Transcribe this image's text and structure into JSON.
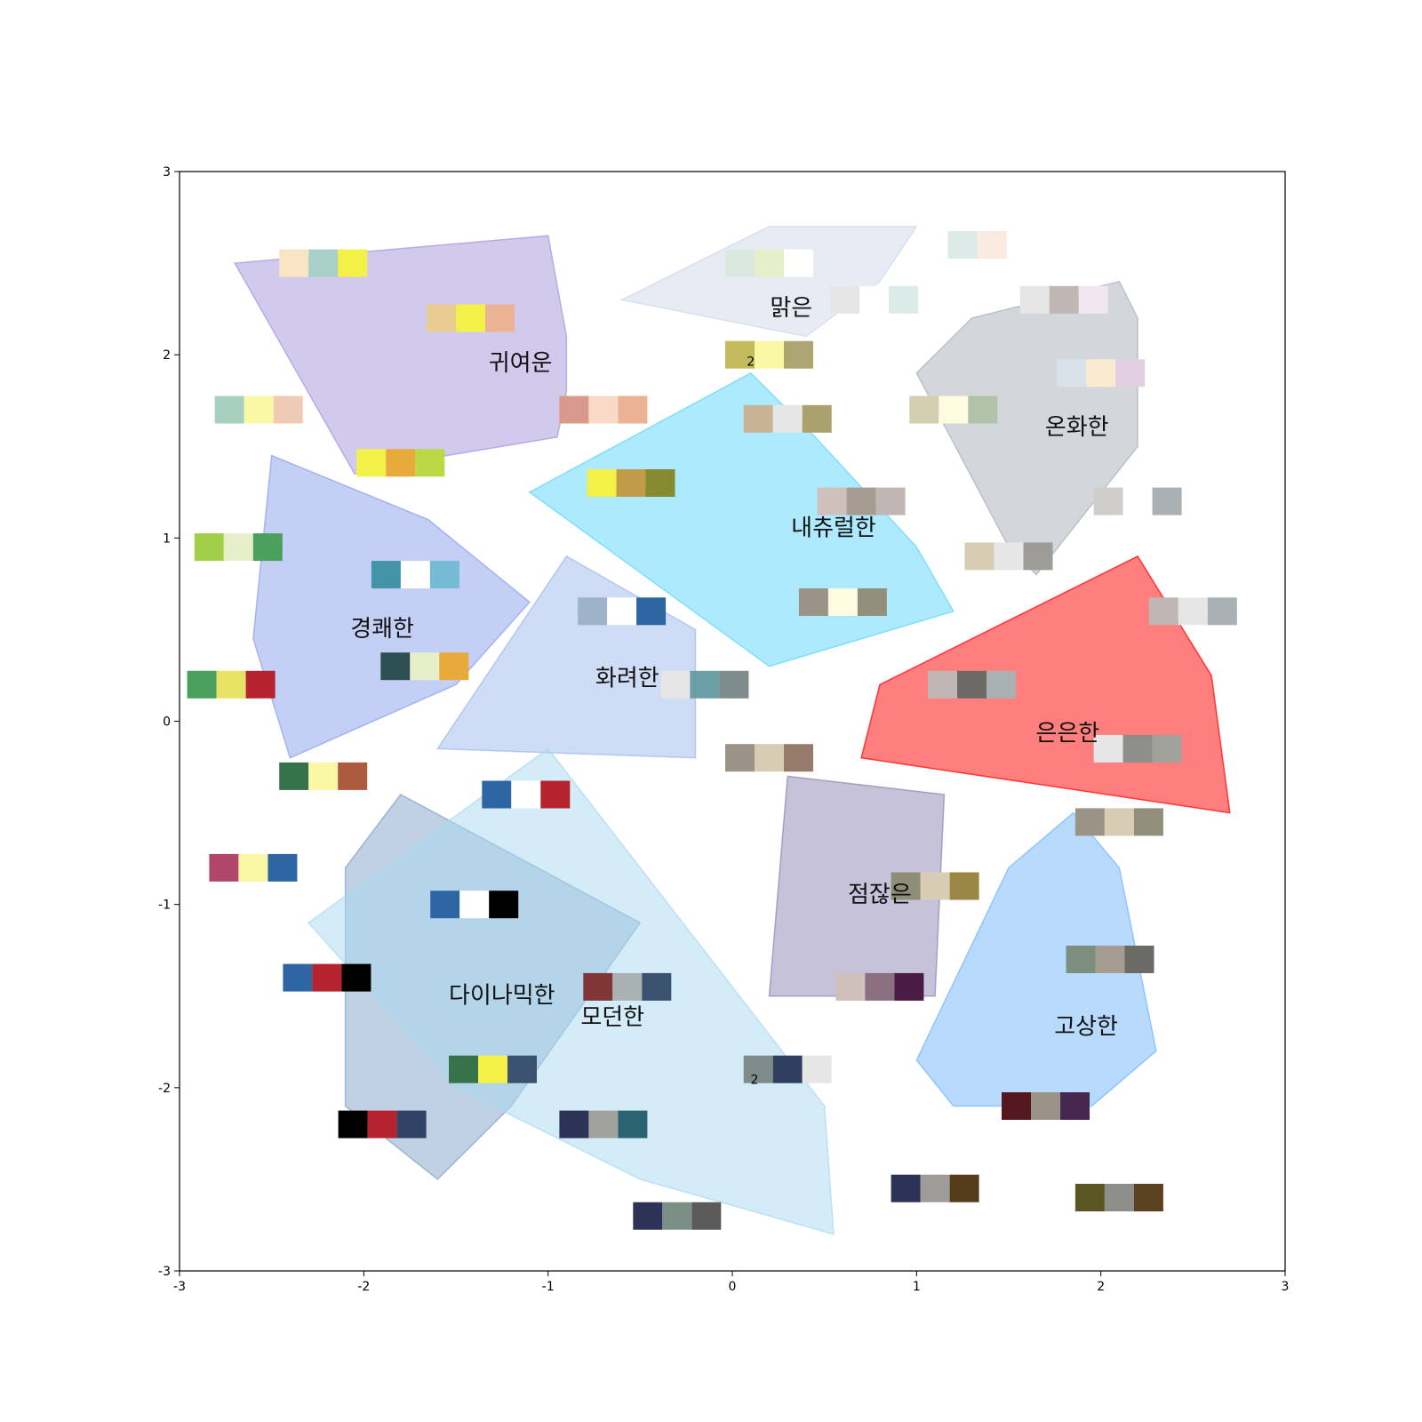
{
  "chart_data": {
    "type": "scatter",
    "title": "",
    "xlabel": "",
    "ylabel": "",
    "xlim": [
      -3,
      3
    ],
    "ylim": [
      -3,
      3
    ],
    "xticks": [
      -3,
      -2,
      -1,
      0,
      1,
      2,
      3
    ],
    "yticks": [
      -3,
      -2,
      -1,
      0,
      1,
      2,
      3
    ],
    "grid": false,
    "regions": [
      {
        "label": "귀여운",
        "label_at": [
          -1.15,
          1.95
        ],
        "color": "#a596dc",
        "polygon": [
          [
            -2.7,
            2.5
          ],
          [
            -1.0,
            2.65
          ],
          [
            -0.9,
            2.1
          ],
          [
            -0.9,
            1.8
          ],
          [
            -0.95,
            1.55
          ],
          [
            -1.55,
            1.45
          ],
          [
            -2.05,
            1.35
          ]
        ]
      },
      {
        "label": "맑은",
        "label_at": [
          0.32,
          2.25
        ],
        "color": "#cfd9ea",
        "polygon": [
          [
            -0.6,
            2.3
          ],
          [
            0.2,
            2.7
          ],
          [
            1.0,
            2.7
          ],
          [
            0.8,
            2.4
          ],
          [
            0.4,
            2.1
          ]
        ]
      },
      {
        "label": "온화한",
        "label_at": [
          1.87,
          1.6
        ],
        "color": "#a8b0ba",
        "polygon": [
          [
            1.0,
            1.9
          ],
          [
            1.3,
            2.2
          ],
          [
            2.1,
            2.4
          ],
          [
            2.2,
            2.2
          ],
          [
            2.2,
            1.5
          ],
          [
            1.65,
            0.8
          ],
          [
            1.5,
            0.95
          ]
        ]
      },
      {
        "label": "내츄럴한",
        "label_at": [
          0.55,
          1.05
        ],
        "color": "#5dd5fc",
        "polygon": [
          [
            -1.1,
            1.25
          ],
          [
            0.1,
            1.9
          ],
          [
            0.45,
            1.55
          ],
          [
            1.0,
            0.95
          ],
          [
            1.2,
            0.6
          ],
          [
            0.2,
            0.3
          ]
        ]
      },
      {
        "label": "경쾌한",
        "label_at": [
          -1.9,
          0.5
        ],
        "color": "#8a9feb",
        "polygon": [
          [
            -2.5,
            1.45
          ],
          [
            -1.65,
            1.1
          ],
          [
            -1.1,
            0.65
          ],
          [
            -1.5,
            0.2
          ],
          [
            -2.4,
            -0.2
          ],
          [
            -2.6,
            0.45
          ]
        ]
      },
      {
        "label": "화려한",
        "label_at": [
          -0.57,
          0.23
        ],
        "color": "#9eb9ee",
        "polygon": [
          [
            -0.9,
            0.9
          ],
          [
            -0.2,
            0.5
          ],
          [
            -0.2,
            -0.2
          ],
          [
            -1.6,
            -0.15
          ]
        ]
      },
      {
        "label": "은은한",
        "label_at": [
          1.82,
          -0.07
        ],
        "color": "#ff0000",
        "polygon": [
          [
            0.8,
            0.2
          ],
          [
            2.2,
            0.9
          ],
          [
            2.6,
            0.25
          ],
          [
            2.7,
            -0.5
          ],
          [
            0.7,
            -0.2
          ]
        ]
      },
      {
        "label": "점잖은",
        "label_at": [
          0.8,
          -0.95
        ],
        "color": "#8e85b5",
        "polygon": [
          [
            0.3,
            -0.3
          ],
          [
            1.15,
            -0.4
          ],
          [
            1.1,
            -1.5
          ],
          [
            0.2,
            -1.5
          ]
        ]
      },
      {
        "label": "다이나믹한",
        "label_at": [
          -1.25,
          -1.5
        ],
        "color": "#7fa3c7",
        "polygon": [
          [
            -1.8,
            -0.4
          ],
          [
            -0.5,
            -1.1
          ],
          [
            -1.2,
            -2.1
          ],
          [
            -1.6,
            -2.5
          ],
          [
            -2.1,
            -2.1
          ],
          [
            -2.1,
            -0.8
          ]
        ]
      },
      {
        "label": "모던한",
        "label_at": [
          -0.65,
          -1.62
        ],
        "color": "#aad9ef",
        "polygon": [
          [
            -2.3,
            -1.1
          ],
          [
            -1.0,
            -0.15
          ],
          [
            0.5,
            -2.1
          ],
          [
            0.55,
            -2.8
          ],
          [
            -0.5,
            -2.5
          ],
          [
            -1.5,
            -2.0
          ]
        ]
      },
      {
        "label": "고상한",
        "label_at": [
          1.92,
          -1.67
        ],
        "color": "#72b5fa",
        "polygon": [
          [
            1.5,
            -0.8
          ],
          [
            1.85,
            -0.5
          ],
          [
            2.1,
            -0.8
          ],
          [
            2.3,
            -1.8
          ],
          [
            1.95,
            -2.1
          ],
          [
            1.2,
            -2.1
          ],
          [
            1.0,
            -1.85
          ]
        ]
      }
    ],
    "swatches": [
      {
        "at": [
          -2.22,
          2.5
        ],
        "colors": [
          "#f7e5c4",
          "#a8d0c7",
          "#f3f148"
        ]
      },
      {
        "at": [
          -1.42,
          2.2
        ],
        "colors": [
          "#e9cc91",
          "#f3f148",
          "#ebb393"
        ]
      },
      {
        "at": [
          -2.57,
          1.7
        ],
        "colors": [
          "#a8d0bf",
          "#fbf8a5",
          "#efcbb6"
        ]
      },
      {
        "at": [
          -1.8,
          1.41
        ],
        "colors": [
          "#f3f148",
          "#e8ab3b",
          "#bcd945"
        ]
      },
      {
        "at": [
          -0.7,
          1.7
        ],
        "colors": [
          "#d99a8b",
          "#f8dac6",
          "#ebb393"
        ]
      },
      {
        "at": [
          -0.55,
          1.3
        ],
        "colors": [
          "#f3f148",
          "#c29b48",
          "#868b32"
        ]
      },
      {
        "at": [
          -2.68,
          0.95
        ],
        "colors": [
          "#a2cf4a",
          "#e6efca",
          "#4ba05d"
        ]
      },
      {
        "at": [
          -1.72,
          0.8
        ],
        "colors": [
          "#4393a9",
          "#ffffff",
          "#75bbd6"
        ]
      },
      {
        "at": [
          -2.72,
          0.2
        ],
        "colors": [
          "#4ba05d",
          "#e7e263",
          "#b5232f"
        ]
      },
      {
        "at": [
          -1.67,
          0.3
        ],
        "colors": [
          "#2d4f54",
          "#e6efca",
          "#e8ab3b"
        ]
      },
      {
        "at": [
          -0.6,
          0.6
        ],
        "colors": [
          "#9eb2c8",
          "#ffffff",
          "#2d66a3"
        ]
      },
      {
        "at": [
          -0.15,
          0.2
        ],
        "colors": [
          "#e6e6e6",
          "#6a9fa5",
          "#7e8d8b"
        ]
      },
      {
        "at": [
          0.2,
          2.5
        ],
        "colors": [
          "#dbe8e0",
          "#e6efca",
          "#ffffff"
        ]
      },
      {
        "at": [
          0.77,
          2.3
        ],
        "colors": [
          "#e6e6e6",
          "#ffffff",
          "#dbebe7"
        ]
      },
      {
        "at": [
          1.25,
          2.6
        ],
        "colors": [
          "#ffffff",
          "#dbebe7",
          "#faebe0"
        ]
      },
      {
        "at": [
          0.2,
          2.0
        ],
        "colors": [
          "#c4bb5c",
          "#fbf8a5",
          "#ada670"
        ]
      },
      {
        "at": [
          0.3,
          1.65
        ],
        "colors": [
          "#c8b394",
          "#e6e6e6",
          "#aaa16c"
        ]
      },
      {
        "at": [
          1.2,
          1.7
        ],
        "colors": [
          "#d3cfb0",
          "#fefce0",
          "#b0c3aa"
        ]
      },
      {
        "at": [
          1.8,
          2.3
        ],
        "colors": [
          "#e6e6e6",
          "#c0b6b4",
          "#f1e7f2"
        ]
      },
      {
        "at": [
          2.0,
          1.9
        ],
        "colors": [
          "#d8e2e8",
          "#faebd0",
          "#e0d0e2"
        ]
      },
      {
        "at": [
          0.7,
          1.2
        ],
        "colors": [
          "#d0c0bb",
          "#a79c92",
          "#c0b6b4"
        ]
      },
      {
        "at": [
          1.5,
          0.9
        ],
        "colors": [
          "#d7cdb4",
          "#e6e6e6",
          "#9d9c98"
        ]
      },
      {
        "at": [
          2.2,
          1.2
        ],
        "colors": [
          "#d0cec8",
          "#ffffff",
          "#aab1b2"
        ]
      },
      {
        "at": [
          0.6,
          0.65
        ],
        "colors": [
          "#9b9486",
          "#fefce0",
          "#938f7d"
        ]
      },
      {
        "at": [
          2.5,
          0.6
        ],
        "colors": [
          "#c0b6b4",
          "#e6e6e6",
          "#aab1b2"
        ]
      },
      {
        "at": [
          1.3,
          0.2
        ],
        "colors": [
          "#c0b6b4",
          "#6b6a64",
          "#aab1b2"
        ]
      },
      {
        "at": [
          0.2,
          -0.2
        ],
        "colors": [
          "#9b9486",
          "#d7cdb4",
          "#967b6a"
        ]
      },
      {
        "at": [
          2.2,
          -0.15
        ],
        "colors": [
          "#e6e6e6",
          "#8d8d89",
          "#a2a29c"
        ]
      },
      {
        "at": [
          2.1,
          -0.55
        ],
        "colors": [
          "#9b9486",
          "#d7cdb4",
          "#938f7d"
        ]
      },
      {
        "at": [
          1.1,
          -0.9
        ],
        "colors": [
          "#8d8d78",
          "#d7cdb4",
          "#9b8745"
        ]
      },
      {
        "at": [
          2.05,
          -1.3
        ],
        "colors": [
          "#7c8f7e",
          "#a79c92",
          "#6b6a64"
        ]
      },
      {
        "at": [
          0.8,
          -1.45
        ],
        "colors": [
          "#d0c0bb",
          "#8a7080",
          "#4a1c45"
        ]
      },
      {
        "at": [
          0.3,
          -1.9
        ],
        "colors": [
          "#7e8d8b",
          "#303e60",
          "#e6e6e6"
        ]
      },
      {
        "at": [
          1.7,
          -2.1
        ],
        "colors": [
          "#551720",
          "#9b9486",
          "#45274f"
        ]
      },
      {
        "at": [
          1.1,
          -2.55
        ],
        "colors": [
          "#2d3356",
          "#9d9c98",
          "#553d1c"
        ]
      },
      {
        "at": [
          2.1,
          -2.6
        ],
        "colors": [
          "#595624",
          "#8d8d89",
          "#5a4220"
        ]
      },
      {
        "at": [
          -1.12,
          -0.4
        ],
        "colors": [
          "#2d66a3",
          "#ffffff",
          "#b5232f"
        ]
      },
      {
        "at": [
          -2.22,
          -0.3
        ],
        "colors": [
          "#36724a",
          "#fbf8a5",
          "#ad5a3e"
        ]
      },
      {
        "at": [
          -2.6,
          -0.8
        ],
        "colors": [
          "#b1466b",
          "#fbf8a5",
          "#2d66a3"
        ]
      },
      {
        "at": [
          -1.4,
          -1.0
        ],
        "colors": [
          "#2d66a3",
          "#ffffff",
          "#000000"
        ]
      },
      {
        "at": [
          -2.2,
          -1.4
        ],
        "colors": [
          "#2d66a3",
          "#b5232f",
          "#000000"
        ]
      },
      {
        "at": [
          -0.57,
          -1.45
        ],
        "colors": [
          "#803537",
          "#aab1b2",
          "#3a5170"
        ]
      },
      {
        "at": [
          -1.3,
          -1.9
        ],
        "colors": [
          "#36724a",
          "#f3f148",
          "#3a5170"
        ]
      },
      {
        "at": [
          -1.9,
          -2.2
        ],
        "colors": [
          "#000000",
          "#b5232f",
          "#304266"
        ]
      },
      {
        "at": [
          -0.7,
          -2.2
        ],
        "colors": [
          "#2d3356",
          "#a2a29c",
          "#2b6470"
        ]
      },
      {
        "at": [
          -0.3,
          -2.7
        ],
        "colors": [
          "#2d3356",
          "#7c8f87",
          "#5a5a5a"
        ]
      }
    ],
    "stray_text": [
      {
        "text": "2",
        "at": [
          0.1,
          1.96
        ]
      },
      {
        "text": "2",
        "at": [
          0.12,
          -1.96
        ]
      }
    ]
  }
}
